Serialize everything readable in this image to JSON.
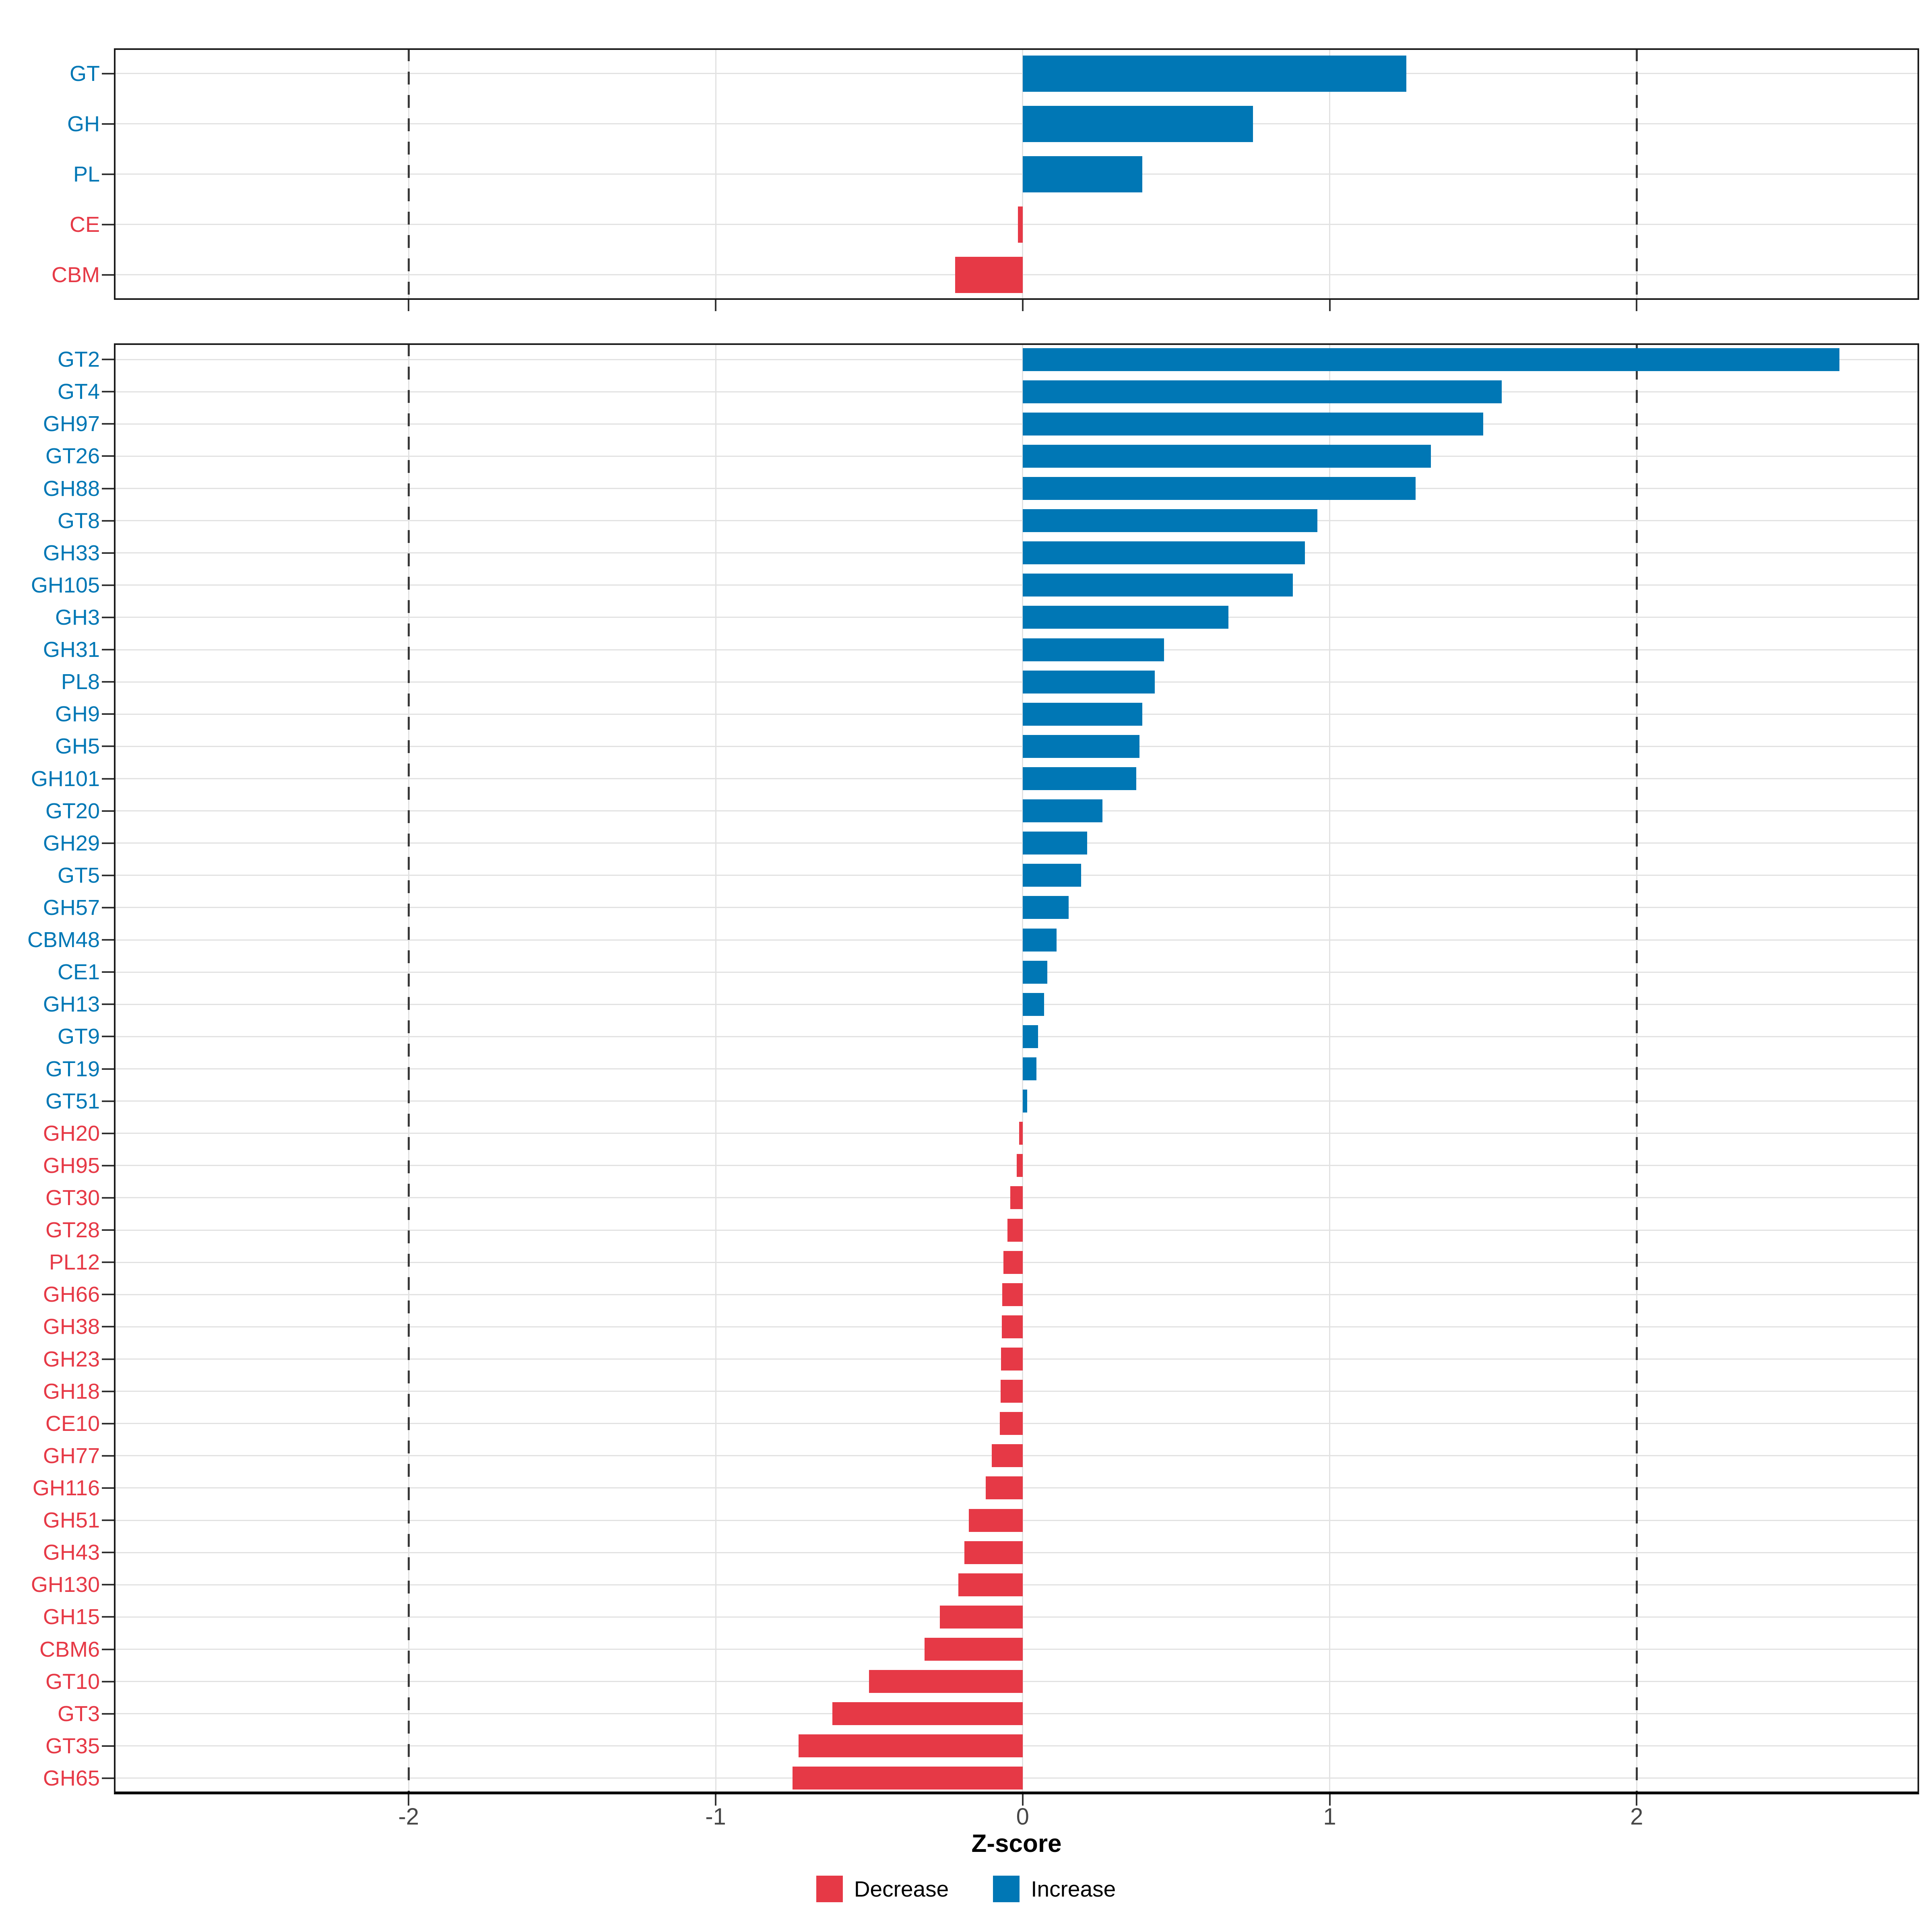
{
  "figure": {
    "xlabel": "Z-score",
    "x_range": [
      -2.96,
      2.92
    ],
    "x_ticks": [
      -2,
      -1,
      0,
      1,
      2
    ],
    "x_tick_labels": [
      "-2",
      "-1",
      "0",
      "1",
      "2"
    ],
    "dashed_lines_at": [
      -2,
      2
    ],
    "colors": {
      "increase": "#0077B5",
      "decrease": "#E63946",
      "gridline": "#E2E2E2",
      "dashed_line": "#3A3A3A",
      "tick_text": "#474747",
      "panel_border": "#1A1A1A"
    },
    "legend": {
      "items": [
        {
          "label": "Decrease",
          "color": "#E63946"
        },
        {
          "label": "Increase",
          "color": "#0077B5"
        }
      ]
    }
  },
  "chart_data": [
    {
      "type": "bar",
      "orientation": "horizontal",
      "panel": "top",
      "title": "",
      "xlabel": "Z-score",
      "xlim": [
        -2.96,
        2.92
      ],
      "grid": true,
      "categories": [
        "GT",
        "GH",
        "PL",
        "CE",
        "CBM"
      ],
      "values": [
        1.25,
        0.75,
        0.39,
        -0.015,
        -0.22
      ]
    },
    {
      "type": "bar",
      "orientation": "horizontal",
      "panel": "bottom",
      "title": "",
      "xlabel": "Z-score",
      "xlim": [
        -2.96,
        2.92
      ],
      "grid": true,
      "categories": [
        "GT2",
        "GT4",
        "GH97",
        "GT26",
        "GH88",
        "GT8",
        "GH33",
        "GH105",
        "GH3",
        "GH31",
        "PL8",
        "GH9",
        "GH5",
        "GH101",
        "GT20",
        "GH29",
        "GT5",
        "GH57",
        "CBM48",
        "CE1",
        "GH13",
        "GT9",
        "GT19",
        "GT51",
        "GH20",
        "GH95",
        "GT30",
        "GT28",
        "PL12",
        "GH66",
        "GH38",
        "GH23",
        "GH18",
        "CE10",
        "GH77",
        "GH116",
        "GH51",
        "GH43",
        "GH130",
        "GH15",
        "CBM6",
        "GT10",
        "GT3",
        "GT35",
        "GH65"
      ],
      "values": [
        2.66,
        1.56,
        1.5,
        1.33,
        1.28,
        0.96,
        0.92,
        0.88,
        0.67,
        0.46,
        0.43,
        0.39,
        0.38,
        0.37,
        0.26,
        0.21,
        0.19,
        0.15,
        0.11,
        0.08,
        0.07,
        0.05,
        0.045,
        0.015,
        -0.012,
        -0.02,
        -0.04,
        -0.05,
        -0.062,
        -0.066,
        -0.068,
        -0.07,
        -0.072,
        -0.074,
        -0.1,
        -0.12,
        -0.175,
        -0.19,
        -0.21,
        -0.27,
        -0.32,
        -0.5,
        -0.62,
        -0.73,
        -0.75
      ]
    }
  ]
}
